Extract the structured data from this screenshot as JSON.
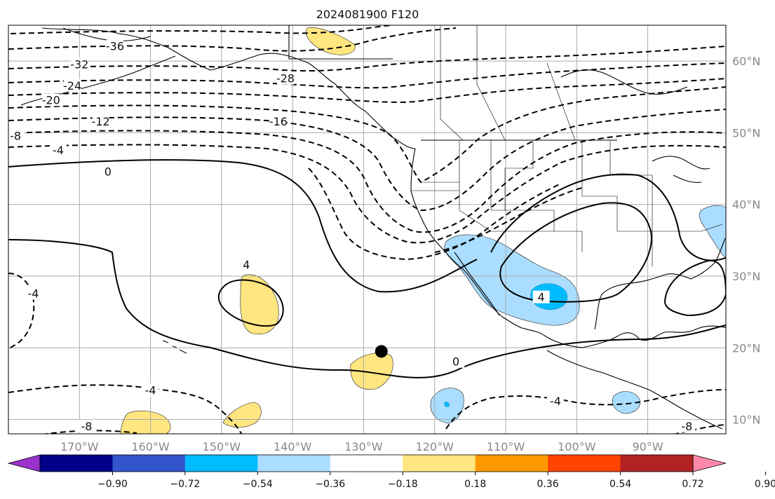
{
  "title": "2024081900 F120",
  "map_extent": {
    "lon_min": -180,
    "lon_max": -79,
    "lat_min": 8,
    "lat_max": 65
  },
  "lon_ticks": [
    {
      "lon": -170,
      "label": "170°W"
    },
    {
      "lon": -160,
      "label": "160°W"
    },
    {
      "lon": -150,
      "label": "150°W"
    },
    {
      "lon": -140,
      "label": "140°W"
    },
    {
      "lon": -130,
      "label": "130°W"
    },
    {
      "lon": -120,
      "label": "120°W"
    },
    {
      "lon": -110,
      "label": "110°W"
    },
    {
      "lon": -100,
      "label": "100°W"
    },
    {
      "lon": -90,
      "label": "90°W"
    }
  ],
  "lat_ticks": [
    {
      "lat": 10,
      "label": "10°N"
    },
    {
      "lat": 20,
      "label": "20°N"
    },
    {
      "lat": 30,
      "label": "30°N"
    },
    {
      "lat": 40,
      "label": "40°N"
    },
    {
      "lat": 50,
      "label": "50°N"
    },
    {
      "lat": 60,
      "label": "60°N"
    }
  ],
  "colorbar": {
    "ticks": [
      "−0.90",
      "−0.72",
      "−0.54",
      "−0.36",
      "−0.18",
      "0.18",
      "0.36",
      "0.54",
      "0.72",
      "0.90"
    ],
    "colors": [
      "#9933cc",
      "#000088",
      "#3355cc",
      "#00bbff",
      "#aaddff",
      "#ffffff",
      "#ffe680",
      "#ff9900",
      "#ff4400",
      "#b22222",
      "#ff88aa"
    ]
  },
  "contour_labels": [
    {
      "text": "-36",
      "lon": -165,
      "lat": 62
    },
    {
      "text": "-32",
      "lon": -170,
      "lat": 59.5
    },
    {
      "text": "-24",
      "lon": -171,
      "lat": 56.5
    },
    {
      "text": "-20",
      "lon": -174,
      "lat": 54.5
    },
    {
      "text": "-12",
      "lon": -167,
      "lat": 51.5
    },
    {
      "text": "-8",
      "lon": -179,
      "lat": 49.5
    },
    {
      "text": "-4",
      "lon": -173,
      "lat": 47.5
    },
    {
      "text": "0",
      "lon": -166,
      "lat": 44.5
    },
    {
      "text": "-28",
      "lon": -141,
      "lat": 57.5
    },
    {
      "text": "-16",
      "lon": -142,
      "lat": 51.5
    },
    {
      "text": "4",
      "lon": -146.5,
      "lat": 31.5
    },
    {
      "text": "-4",
      "lon": -176.5,
      "lat": 27.5
    },
    {
      "text": "4",
      "lon": -105,
      "lat": 27
    },
    {
      "text": "0",
      "lon": -117,
      "lat": 18
    },
    {
      "text": "-4",
      "lon": -160,
      "lat": 14
    },
    {
      "text": "-4",
      "lon": -103,
      "lat": 12.5
    },
    {
      "text": "-8",
      "lon": -169,
      "lat": 9
    },
    {
      "text": "-8",
      "lon": -84.5,
      "lat": 9
    }
  ],
  "marker": {
    "lon": -127.5,
    "lat": 19.5,
    "color": "#000000"
  }
}
